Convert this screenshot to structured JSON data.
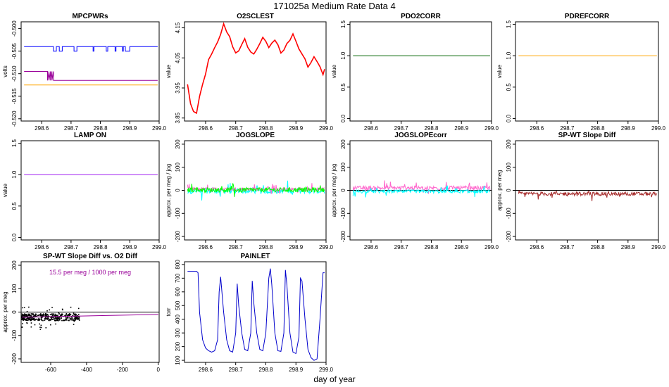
{
  "figure": {
    "title": "171025a   Medium Rate Data 4",
    "xlabel": "day of year"
  },
  "chart_data": [
    {
      "id": "mpcpwrs",
      "type": "line",
      "title": "MPCPWRs",
      "ylabel": "volts",
      "xlim": [
        298.53,
        299.0
      ],
      "ylim": [
        -0.5205,
        -0.4985
      ],
      "xticks": [
        "298.6",
        "298.7",
        "298.8",
        "298.9",
        "299.0"
      ],
      "yticks": [
        "-0.520",
        "-0.515",
        "-0.510",
        "-0.505",
        "-0.500"
      ],
      "series": [
        {
          "color": "#0000ff",
          "x": [
            298.54,
            298.64,
            298.64,
            298.65,
            298.65,
            298.66,
            298.66,
            298.67,
            298.67,
            298.71,
            298.71,
            298.72,
            298.72,
            298.775,
            298.775,
            298.778,
            298.778,
            298.82,
            298.82,
            298.825,
            298.825,
            298.85,
            298.85,
            298.853,
            298.853,
            298.875,
            298.875,
            298.878,
            298.878,
            298.885,
            298.885,
            298.9,
            298.9,
            298.995
          ],
          "y": [
            -0.504,
            -0.504,
            -0.505,
            -0.505,
            -0.504,
            -0.504,
            -0.505,
            -0.505,
            -0.504,
            -0.504,
            -0.505,
            -0.505,
            -0.504,
            -0.504,
            -0.505,
            -0.505,
            -0.504,
            -0.504,
            -0.505,
            -0.505,
            -0.504,
            -0.504,
            -0.505,
            -0.505,
            -0.504,
            -0.504,
            -0.505,
            -0.505,
            -0.504,
            -0.504,
            -0.505,
            -0.505,
            -0.504,
            -0.504
          ]
        },
        {
          "color": "#990099",
          "x": [
            298.54,
            298.62,
            298.62,
            298.625,
            298.625,
            298.63,
            298.63,
            298.635,
            298.635,
            298.64,
            298.64,
            298.995
          ],
          "y": [
            -0.5095,
            -0.5095,
            -0.5115,
            -0.5095,
            -0.5115,
            -0.5095,
            -0.5115,
            -0.5095,
            -0.5115,
            -0.5095,
            -0.5115,
            -0.5115
          ]
        },
        {
          "color": "#ffa500",
          "x": [
            298.54,
            298.995
          ],
          "y": [
            -0.5125,
            -0.5125
          ]
        }
      ]
    },
    {
      "id": "o2sclest",
      "type": "line",
      "title": "O2SCLEST",
      "ylabel": "value",
      "xlim": [
        298.53,
        299.0
      ],
      "ylim": [
        3.84,
        4.17
      ],
      "xticks": [
        "298.6",
        "298.7",
        "298.8",
        "298.9",
        "299.0"
      ],
      "yticks": [
        "3.85",
        "3.95",
        "4.05",
        "4.15"
      ],
      "series": [
        {
          "color": "#ff0000",
          "x": [
            298.54,
            298.55,
            298.56,
            298.57,
            298.58,
            298.59,
            298.6,
            298.61,
            298.62,
            298.63,
            298.64,
            298.65,
            298.66,
            298.67,
            298.68,
            298.69,
            298.7,
            298.71,
            298.72,
            298.73,
            298.74,
            298.75,
            298.76,
            298.77,
            298.78,
            298.79,
            298.8,
            298.81,
            298.82,
            298.83,
            298.84,
            298.85,
            298.86,
            298.87,
            298.88,
            298.89,
            298.9,
            298.91,
            298.92,
            298.93,
            298.94,
            298.95,
            298.96,
            298.97,
            298.98,
            298.99,
            298.995
          ],
          "y": [
            3.96,
            3.9,
            3.87,
            3.86,
            3.92,
            3.96,
            4.0,
            4.04,
            4.06,
            4.08,
            4.1,
            4.13,
            4.16,
            4.14,
            4.12,
            4.09,
            4.07,
            4.07,
            4.09,
            4.11,
            4.09,
            4.07,
            4.06,
            4.08,
            4.1,
            4.12,
            4.1,
            4.08,
            4.1,
            4.11,
            4.09,
            4.07,
            4.08,
            4.1,
            4.11,
            4.13,
            4.1,
            4.08,
            4.06,
            4.05,
            4.02,
            4.03,
            4.05,
            4.04,
            4.02,
            3.99,
            4.01
          ]
        }
      ]
    },
    {
      "id": "pdo2corr",
      "type": "line",
      "title": "PDO2CORR",
      "ylabel": "value",
      "xlim": [
        298.53,
        299.0
      ],
      "ylim": [
        -0.04,
        1.54
      ],
      "xticks": [
        "298.6",
        "298.7",
        "298.8",
        "298.9",
        "299.0"
      ],
      "yticks": [
        "0.0",
        "0.5",
        "1.0",
        "1.5"
      ],
      "series": [
        {
          "color": "#006400",
          "x": [
            298.54,
            298.995
          ],
          "y": [
            1.0,
            1.0
          ]
        }
      ]
    },
    {
      "id": "pdrefcorr",
      "type": "line",
      "title": "PDREFCORR",
      "ylabel": "value",
      "xlim": [
        298.53,
        299.0
      ],
      "ylim": [
        -0.04,
        1.54
      ],
      "xticks": [
        "298.6",
        "298.7",
        "298.8",
        "298.9",
        "299.0"
      ],
      "yticks": [
        "0.0",
        "0.5",
        "1.0",
        "1.5"
      ],
      "series": [
        {
          "color": "#ffa500",
          "x": [
            298.54,
            298.995
          ],
          "y": [
            1.0,
            1.0
          ]
        }
      ]
    },
    {
      "id": "lampon",
      "type": "line",
      "title": "LAMP ON",
      "ylabel": "value",
      "xlim": [
        298.53,
        299.0
      ],
      "ylim": [
        -0.04,
        1.54
      ],
      "xticks": [
        "298.6",
        "298.7",
        "298.8",
        "298.9",
        "299.0"
      ],
      "yticks": [
        "0.0",
        "0.5",
        "1.0",
        "1.5"
      ],
      "series": [
        {
          "color": "#a020f0",
          "x": [
            298.54,
            298.995
          ],
          "y": [
            1.0,
            1.0
          ]
        }
      ]
    },
    {
      "id": "jogslope",
      "type": "line",
      "title": "JOGSLOPE",
      "ylabel": "approx. per meg / jog",
      "xlim": [
        298.53,
        299.0
      ],
      "ylim": [
        -215,
        215
      ],
      "xticks": [
        "298.6",
        "298.7",
        "298.8",
        "298.9",
        "299.0"
      ],
      "yticks": [
        "-200",
        "-100",
        "0",
        "100",
        "200"
      ],
      "series": [
        {
          "color": "#00ffff",
          "noise": 22,
          "offset": -3,
          "x": [
            298.54,
            298.995
          ],
          "y": [
            -3,
            -3
          ]
        },
        {
          "color": "#ff66cc",
          "noise": 14,
          "offset": 5,
          "x": [
            298.54,
            298.995
          ],
          "y": [
            5,
            5
          ]
        },
        {
          "color": "#00ff00",
          "noise": 20,
          "offset": 2,
          "x": [
            298.54,
            298.995
          ],
          "y": [
            2,
            2
          ]
        }
      ]
    },
    {
      "id": "jogslopecorr",
      "type": "line",
      "title": "JOGSLOPEcorr",
      "ylabel": "approx. per meg / jog",
      "xlim": [
        298.53,
        299.0
      ],
      "ylim": [
        -215,
        215
      ],
      "xticks": [
        "298.6",
        "298.7",
        "298.8",
        "298.9",
        "299.0"
      ],
      "yticks": [
        "-200",
        "-100",
        "0",
        "100",
        "200"
      ],
      "hline": 0,
      "series": [
        {
          "color": "#ff66cc",
          "noise": 18,
          "offset": 10,
          "x": [
            298.54,
            298.995
          ],
          "y": [
            10,
            10
          ]
        },
        {
          "color": "#00ffff",
          "noise": 14,
          "offset": -5,
          "x": [
            298.54,
            298.995
          ],
          "y": [
            -5,
            -5
          ]
        }
      ]
    },
    {
      "id": "spwtslope",
      "type": "line",
      "title": "SP-WT Slope Diff",
      "ylabel": "approx. per meg",
      "xlim": [
        298.53,
        299.0
      ],
      "ylim": [
        -215,
        215
      ],
      "xticks": [
        "298.6",
        "298.7",
        "298.8",
        "298.9",
        "299.0"
      ],
      "yticks": [
        "-200",
        "-100",
        "0",
        "100",
        "200"
      ],
      "hline": 0,
      "series": [
        {
          "color": "#a52a2a",
          "noise": 16,
          "offset": -15,
          "x": [
            298.54,
            298.995
          ],
          "y": [
            -15,
            -15
          ]
        }
      ]
    },
    {
      "id": "spwtvso2",
      "type": "scatter",
      "title": "SP-WT Slope Diff vs. O2 Diff",
      "ylabel": "approx. per meg",
      "annotation": "15.5 per meg / 1000 per meg",
      "xlim": [
        -765,
        5
      ],
      "ylim": [
        -215,
        215
      ],
      "xticks": [
        "-600",
        "-400",
        "-200",
        "0"
      ],
      "yticks": [
        "-200",
        "-100",
        "0",
        "100",
        "200"
      ],
      "hline": 0,
      "fit": {
        "color": "#990099",
        "x": [
          -760,
          0
        ],
        "y": [
          -22,
          -10
        ]
      },
      "scatter": {
        "color": "#000000",
        "xrange": [
          -760,
          -440
        ],
        "center": -22,
        "spread": 15
      }
    },
    {
      "id": "painlet",
      "type": "line",
      "title": "PAINLET",
      "ylabel": "torr",
      "xlim": [
        298.53,
        299.0
      ],
      "ylim": [
        85,
        820
      ],
      "xticks": [
        "298.6",
        "298.7",
        "298.8",
        "298.9",
        "299.0"
      ],
      "yticks": [
        "100",
        "200",
        "300",
        "400",
        "500",
        "600",
        "700",
        "800"
      ],
      "series": [
        {
          "color": "#0000cc",
          "x": [
            298.54,
            298.57,
            298.575,
            298.58,
            298.59,
            298.6,
            298.61,
            298.62,
            298.63,
            298.64,
            298.645,
            298.65,
            298.66,
            298.67,
            298.68,
            298.69,
            298.7,
            298.705,
            298.71,
            298.72,
            298.73,
            298.74,
            298.75,
            298.755,
            298.76,
            298.77,
            298.78,
            298.79,
            298.8,
            298.81,
            298.815,
            298.82,
            298.83,
            298.84,
            298.85,
            298.86,
            298.865,
            298.87,
            298.88,
            298.89,
            298.9,
            298.91,
            298.915,
            298.92,
            298.93,
            298.94,
            298.95,
            298.96,
            298.97,
            298.98,
            298.99,
            298.995
          ],
          "y": [
            750,
            750,
            740,
            450,
            250,
            190,
            170,
            160,
            170,
            250,
            600,
            710,
            450,
            250,
            170,
            160,
            300,
            660,
            500,
            300,
            180,
            170,
            300,
            680,
            520,
            300,
            180,
            170,
            300,
            700,
            770,
            650,
            300,
            170,
            165,
            300,
            760,
            650,
            300,
            160,
            150,
            270,
            700,
            680,
            400,
            180,
            120,
            100,
            110,
            400,
            740,
            740
          ]
        }
      ]
    }
  ]
}
